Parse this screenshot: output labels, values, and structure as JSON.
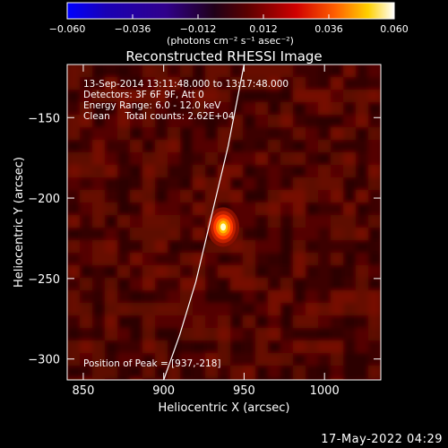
{
  "footer": {
    "date_stamp": "17-May-2022 04:29"
  },
  "chart_data": {
    "type": "heatmap",
    "title": "Reconstructed RHESSI Image",
    "xlabel": "Heliocentric X (arcsec)",
    "ylabel": "Heliocentric Y (arcsec)",
    "xlim": [
      840,
      1035
    ],
    "ylim": [
      -313,
      -117
    ],
    "xticks": [
      850,
      900,
      950,
      1000
    ],
    "yticks": [
      -300,
      -250,
      -200,
      -150
    ],
    "colorbar": {
      "label": "(photons cm⁻² s⁻¹ asec⁻²)",
      "range": [
        -0.06,
        0.06
      ],
      "ticks": [
        -0.06,
        -0.036,
        -0.012,
        0.012,
        0.036,
        0.06
      ],
      "tick_labels": [
        "−0.060",
        "−0.036",
        "−0.012",
        "0.012",
        "0.036",
        "0.060"
      ]
    },
    "annotations": [
      "13-Sep-2014 13:11:48.000 to 13:17:48.000",
      "Detectors: 3F 6F 9F, Att 0",
      "Energy Range: 6.0 - 12.0 keV",
      "Clean     Total counts: 2.62E+04"
    ],
    "peak_label": "Position of Peak = [937,-218]",
    "peak": {
      "x": 937,
      "y": -218
    },
    "limb": [
      [
        900,
        -313
      ],
      [
        910,
        -285
      ],
      [
        920,
        -252
      ],
      [
        930,
        -210
      ],
      [
        940,
        -168
      ],
      [
        950,
        -117
      ]
    ]
  }
}
